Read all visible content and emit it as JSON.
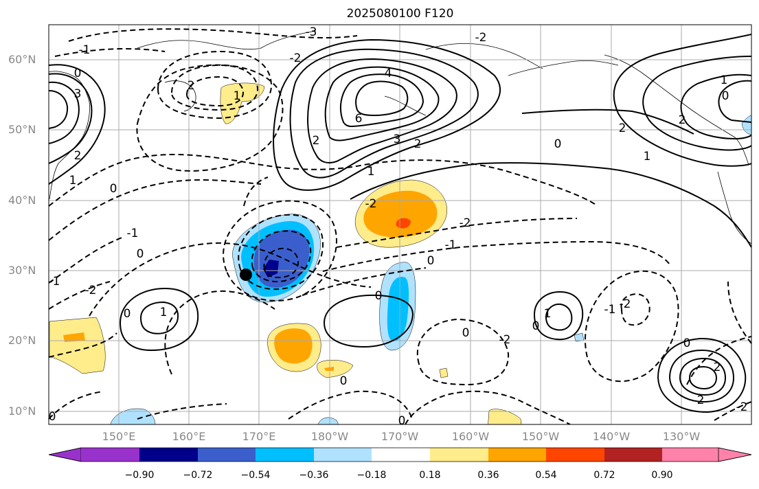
{
  "title": "2025080100 F120",
  "map": {
    "lat_labels": [
      "60°N",
      "50°N",
      "40°N",
      "30°N",
      "20°N",
      "10°N"
    ],
    "lon_labels": [
      "150°E",
      "160°E",
      "170°E",
      "180°W",
      "170°W",
      "160°W",
      "150°W",
      "140°W",
      "130°W"
    ],
    "contour_labels": [
      {
        "text": "0"
      },
      {
        "text": "3"
      },
      {
        "text": "2"
      },
      {
        "text": "1"
      },
      {
        "text": "0"
      },
      {
        "text": "2"
      },
      {
        "text": "1"
      },
      {
        "text": "-1"
      },
      {
        "text": "-2"
      },
      {
        "text": "-3"
      },
      {
        "text": "-2"
      },
      {
        "text": "4"
      },
      {
        "text": "6"
      },
      {
        "text": "3"
      },
      {
        "text": "2"
      },
      {
        "text": "1"
      },
      {
        "text": "2"
      },
      {
        "text": "0"
      },
      {
        "text": "1"
      },
      {
        "text": "2"
      },
      {
        "text": "2"
      },
      {
        "text": "1"
      },
      {
        "text": "0"
      },
      {
        "text": "-1"
      },
      {
        "text": "0"
      },
      {
        "text": "-1"
      },
      {
        "text": "-2"
      },
      {
        "text": "-2"
      },
      {
        "text": "-1"
      },
      {
        "text": "0"
      },
      {
        "text": "0"
      },
      {
        "text": "-2"
      },
      {
        "text": "0"
      },
      {
        "text": "1"
      },
      {
        "text": "0"
      },
      {
        "text": "-2"
      },
      {
        "text": "0"
      },
      {
        "text": "0"
      },
      {
        "text": "1"
      },
      {
        "text": "0"
      },
      {
        "text": "-1"
      },
      {
        "text": "-2"
      },
      {
        "text": "-2"
      },
      {
        "text": "0"
      },
      {
        "text": "2"
      },
      {
        "text": "2"
      },
      {
        "text": "0"
      }
    ],
    "marker": "storm-center-dot"
  },
  "colorbar": {
    "colors": [
      "#9932cc",
      "#00008b",
      "#3a5fcd",
      "#00bfff",
      "#b0e2ff",
      "#ffffff",
      "#ffec8b",
      "#ffa500",
      "#ff4500",
      "#b22222",
      "#ff82ab"
    ],
    "tick_labels": [
      "−0.90",
      "−0.72",
      "−0.54",
      "−0.36",
      "−0.18",
      "0.18",
      "0.36",
      "0.54",
      "0.72",
      "0.90"
    ]
  }
}
